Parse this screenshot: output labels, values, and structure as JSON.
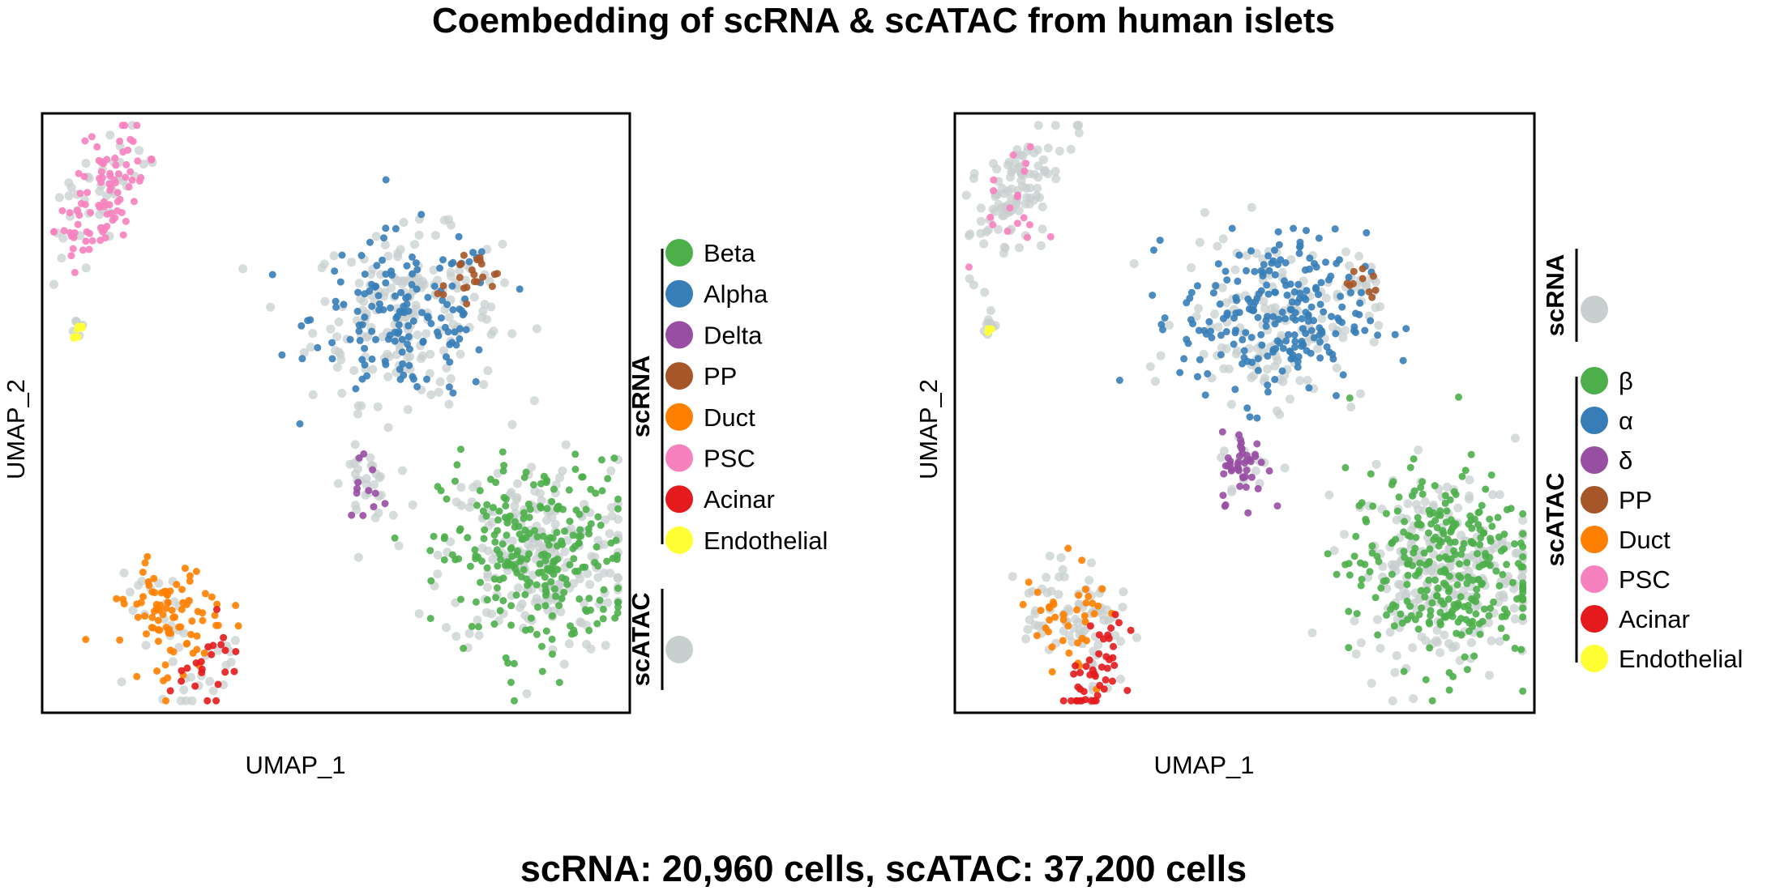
{
  "title": "Coembedding of scRNA & scATAC from human islets",
  "footer": "scRNA: 20,960 cells, scATAC: 37,200 cells",
  "colors": {
    "Beta": "#4daf4a",
    "Alpha": "#377eb8",
    "Delta": "#984ea3",
    "PP": "#a65628",
    "Duct": "#ff7f00",
    "PSC": "#f781bf",
    "Acinar": "#e41a1c",
    "Endothelial": "#ffff33",
    "background": "#c8cfcf"
  },
  "chart_data": [
    {
      "type": "scatter",
      "xlabel": "UMAP_1",
      "ylabel": "UMAP_2",
      "colored_modality": "scRNA",
      "grey_modality": "scATAC",
      "legend": {
        "colored_group_label": "scRNA",
        "colored_entries": [
          {
            "label": "Beta",
            "key": "Beta"
          },
          {
            "label": "Alpha",
            "key": "Alpha"
          },
          {
            "label": "Delta",
            "key": "Delta"
          },
          {
            "label": "PP",
            "key": "PP"
          },
          {
            "label": "Duct",
            "key": "Duct"
          },
          {
            "label": "PSC",
            "key": "PSC"
          },
          {
            "label": "Acinar",
            "key": "Acinar"
          },
          {
            "label": "Endothelial",
            "key": "Endothelial"
          }
        ],
        "grey_group_label": "scATAC",
        "grey_order": "after"
      },
      "clusters": [
        {
          "type": "PSC",
          "x": 0.1,
          "y": 0.86,
          "n_colored": 90,
          "n_grey": 45
        },
        {
          "type": "Endothelial",
          "x": 0.06,
          "y": 0.64,
          "n_colored": 8,
          "n_grey": 6
        },
        {
          "type": "Alpha",
          "x": 0.62,
          "y": 0.66,
          "n_colored": 150,
          "n_grey": 190
        },
        {
          "type": "PP",
          "x": 0.73,
          "y": 0.73,
          "n_colored": 22,
          "n_grey": 8
        },
        {
          "type": "Delta",
          "x": 0.55,
          "y": 0.38,
          "n_colored": 12,
          "n_grey": 28
        },
        {
          "type": "Beta",
          "x": 0.84,
          "y": 0.26,
          "n_colored": 260,
          "n_grey": 230
        },
        {
          "type": "Duct",
          "x": 0.22,
          "y": 0.16,
          "n_colored": 90,
          "n_grey": 25
        },
        {
          "type": "Acinar",
          "x": 0.28,
          "y": 0.07,
          "n_colored": 22,
          "n_grey": 18
        }
      ]
    },
    {
      "type": "scatter",
      "xlabel": "UMAP_1",
      "ylabel": "UMAP_2",
      "colored_modality": "scATAC",
      "grey_modality": "scRNA",
      "legend": {
        "colored_group_label": "scATAC",
        "colored_entries": [
          {
            "label": "β",
            "key": "Beta"
          },
          {
            "label": "α",
            "key": "Alpha"
          },
          {
            "label": "δ",
            "key": "Delta"
          },
          {
            "label": "PP",
            "key": "PP"
          },
          {
            "label": "Duct",
            "key": "Duct"
          },
          {
            "label": "PSC",
            "key": "PSC"
          },
          {
            "label": "Acinar",
            "key": "Acinar"
          },
          {
            "label": "Endothelial",
            "key": "Endothelial"
          }
        ],
        "grey_group_label": "scRNA",
        "grey_order": "before"
      },
      "clusters": [
        {
          "type": "PSC",
          "x": 0.1,
          "y": 0.86,
          "n_colored": 18,
          "n_grey": 110
        },
        {
          "type": "Endothelial",
          "x": 0.06,
          "y": 0.64,
          "n_colored": 3,
          "n_grey": 10
        },
        {
          "type": "Alpha",
          "x": 0.55,
          "y": 0.66,
          "n_colored": 230,
          "n_grey": 140
        },
        {
          "type": "PP",
          "x": 0.7,
          "y": 0.72,
          "n_colored": 10,
          "n_grey": 14
        },
        {
          "type": "Delta",
          "x": 0.5,
          "y": 0.41,
          "n_colored": 45,
          "n_grey": 14
        },
        {
          "type": "Beta",
          "x": 0.84,
          "y": 0.24,
          "n_colored": 300,
          "n_grey": 240
        },
        {
          "type": "Duct",
          "x": 0.2,
          "y": 0.17,
          "n_colored": 40,
          "n_grey": 75
        },
        {
          "type": "Acinar",
          "x": 0.25,
          "y": 0.07,
          "n_colored": 45,
          "n_grey": 14
        }
      ]
    }
  ]
}
